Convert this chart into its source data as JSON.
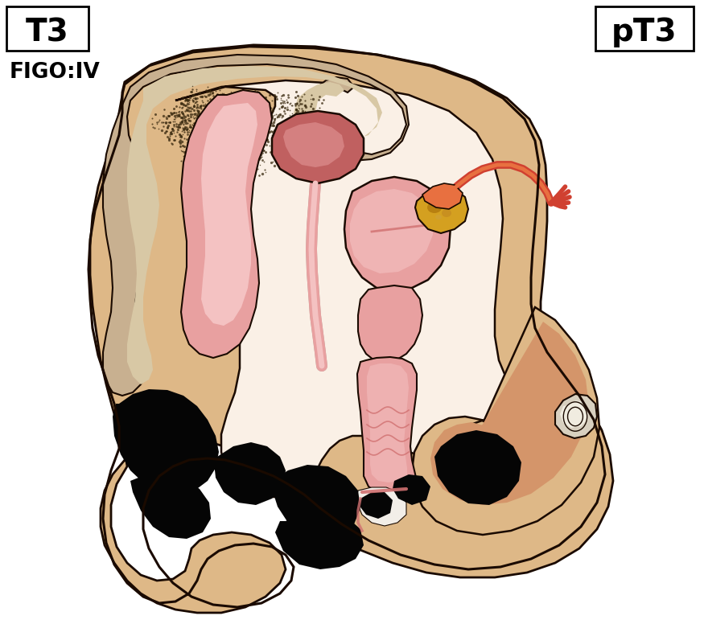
{
  "title_left": "T3",
  "title_right": "pT3",
  "subtitle": "FIGO:IV",
  "bg_color": "#ffffff",
  "skin_tan": "#DEB887",
  "skin_light": "#F5DEB3",
  "skin_inner": "#FAF0E6",
  "pink_light": "#F4C2C2",
  "pink_medium": "#E8A0A0",
  "pink_dark": "#D07070",
  "red_organ": "#C06060",
  "red_bright": "#D04030",
  "orange_organ": "#E87040",
  "yellow_organ": "#D4A020",
  "black_tumor": "#050505",
  "white_area": "#F8F5F0",
  "gray_light": "#D8D0C0",
  "outline_color": "#1a0a00",
  "fig_width": 8.75,
  "fig_height": 7.71
}
